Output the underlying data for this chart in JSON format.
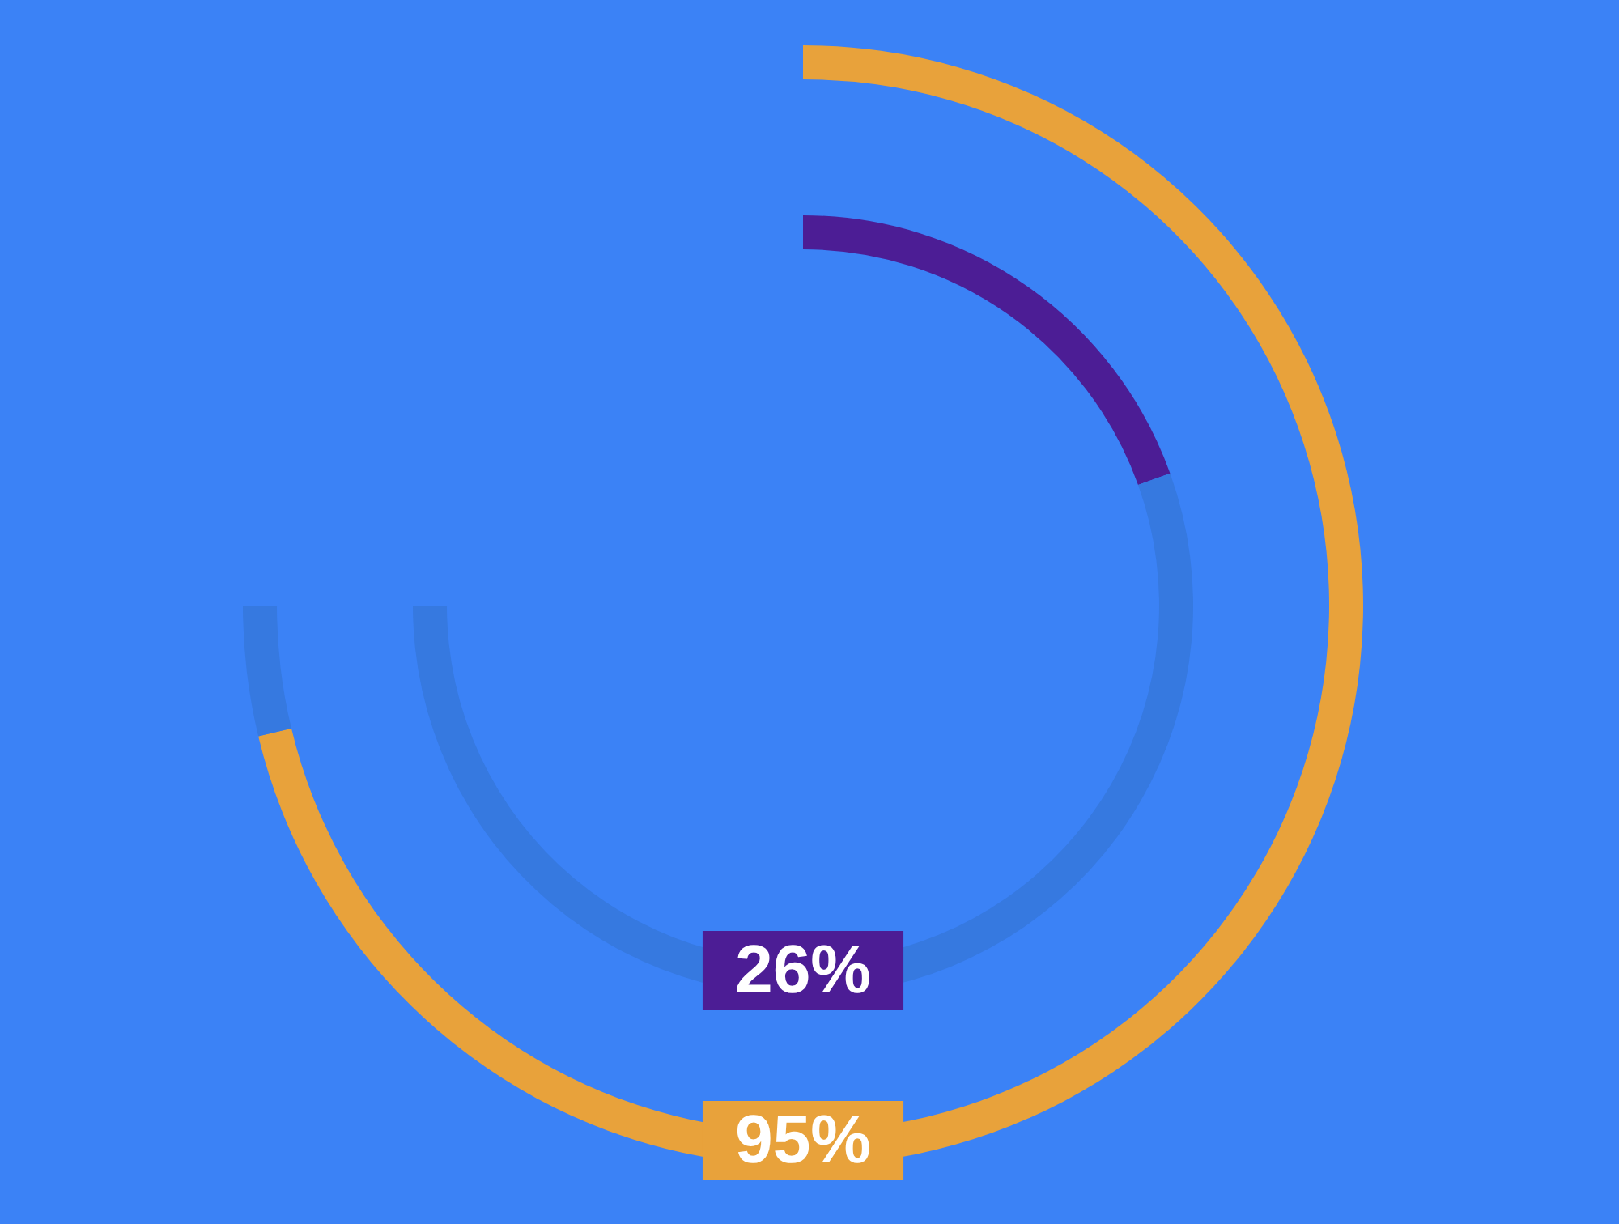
{
  "chart_data": {
    "type": "donut",
    "categories": [
      null,
      null
    ],
    "series": [
      {
        "values": [
          95,
          5
        ],
        "colors": [
          "#e8a23b",
          "#3679e0"
        ]
      },
      {
        "values": [
          26,
          74
        ],
        "colors": [
          "#4c1d95",
          "#3679e0"
        ]
      }
    ],
    "annotations": [
      "95%",
      "26%"
    ]
  }
}
